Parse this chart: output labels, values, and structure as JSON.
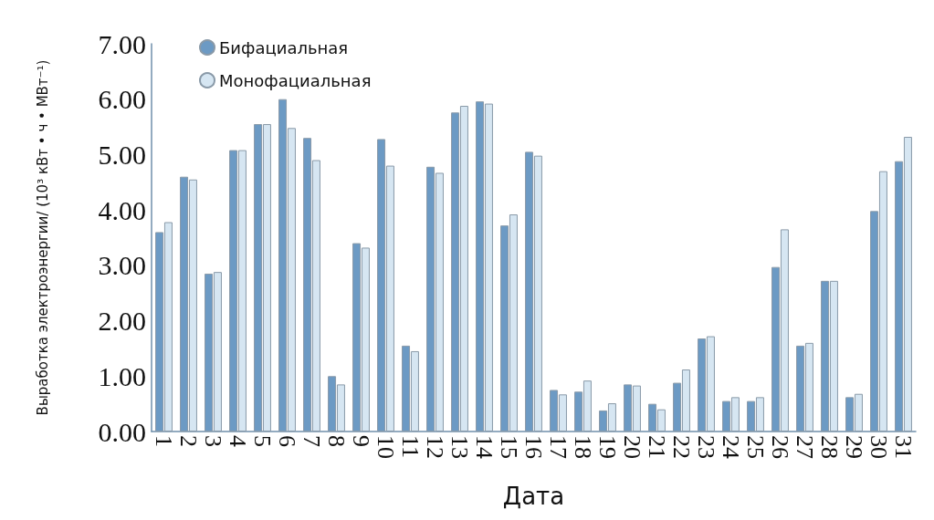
{
  "chart_data": {
    "type": "bar",
    "xlabel": "Дата",
    "ylabel": "Выработка электроэнергии/ (10³ кВт • ч • МВт⁻¹)",
    "categories": [
      "1",
      "2",
      "3",
      "4",
      "5",
      "6",
      "7",
      "8",
      "9",
      "10",
      "11",
      "12",
      "13",
      "14",
      "15",
      "16",
      "17",
      "18",
      "19",
      "20",
      "21",
      "22",
      "23",
      "24",
      "25",
      "26",
      "27",
      "28",
      "29",
      "30",
      "31"
    ],
    "series": [
      {
        "name": "Бифациальная",
        "color": "#6c9ac4",
        "values": [
          3.6,
          4.6,
          2.85,
          5.08,
          5.55,
          6.0,
          5.3,
          1.0,
          3.4,
          5.28,
          1.55,
          4.78,
          5.76,
          5.96,
          3.72,
          5.05,
          0.75,
          0.72,
          0.38,
          0.85,
          0.5,
          0.88,
          1.68,
          0.55,
          0.55,
          2.97,
          1.55,
          2.72,
          0.62,
          3.98,
          4.88
        ]
      },
      {
        "name": "Монофациальная",
        "color": "#d6e6f2",
        "values": [
          3.78,
          4.55,
          2.88,
          5.08,
          5.55,
          5.48,
          4.9,
          0.85,
          3.32,
          4.8,
          1.45,
          4.67,
          5.88,
          5.92,
          3.92,
          4.98,
          0.67,
          0.92,
          0.51,
          0.83,
          0.4,
          1.12,
          1.72,
          0.62,
          0.62,
          3.65,
          1.6,
          2.72,
          0.68,
          4.7,
          5.32
        ]
      }
    ],
    "ylim": [
      0,
      7
    ],
    "yticks": [
      {
        "value": 0,
        "label": "0.00"
      },
      {
        "value": 1,
        "label": "1.00"
      },
      {
        "value": 2,
        "label": "2.00"
      },
      {
        "value": 3,
        "label": "3.00"
      },
      {
        "value": 4,
        "label": "4.00"
      },
      {
        "value": 5,
        "label": "5.00"
      },
      {
        "value": 6,
        "label": "6.00"
      },
      {
        "value": 7,
        "label": "7.00"
      }
    ],
    "grid": false,
    "legend": "top left"
  }
}
